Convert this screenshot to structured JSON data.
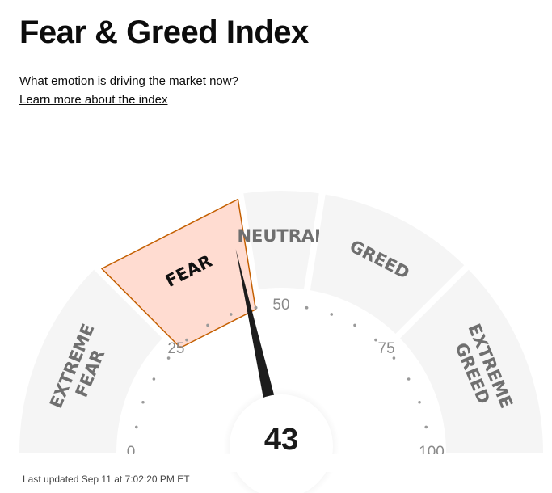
{
  "header": {
    "title": "Fear & Greed Index",
    "subtitle": "What emotion is driving the market now?",
    "learn_more": "Learn more about the index"
  },
  "gauge": {
    "value": 43,
    "value_text": "43",
    "min": 0,
    "max": 100,
    "active_segment": "FEAR",
    "ticks": [
      {
        "value": 0,
        "label": "0"
      },
      {
        "value": 25,
        "label": "25"
      },
      {
        "value": 50,
        "label": "50"
      },
      {
        "value": 75,
        "label": "75"
      },
      {
        "value": 100,
        "label": "100"
      }
    ],
    "segments": [
      {
        "name": "extreme-fear",
        "lines": [
          "EXTREME",
          "FEAR"
        ],
        "from": 0,
        "to": 25
      },
      {
        "name": "fear",
        "lines": [
          "FEAR"
        ],
        "from": 25,
        "to": 45
      },
      {
        "name": "neutral",
        "lines": [
          "NEUTRAL"
        ],
        "from": 45,
        "to": 55
      },
      {
        "name": "greed",
        "lines": [
          "GREED"
        ],
        "from": 55,
        "to": 75
      },
      {
        "name": "extreme-greed",
        "lines": [
          "EXTREME",
          "GREED"
        ],
        "from": 75,
        "to": 100
      }
    ],
    "colors": {
      "segment": "#f5f5f5",
      "segment_text": "#6f6f6f",
      "active_fill": "#ffdcd1",
      "active_stroke": "#c45f00",
      "active_text": "#111111",
      "needle": "#1c1c1c",
      "dots": "#9a9a9a",
      "tick_label": "#8a8a8a"
    }
  },
  "footer": {
    "last_updated": "Last updated Sep 11 at 7:02:20 PM ET"
  }
}
